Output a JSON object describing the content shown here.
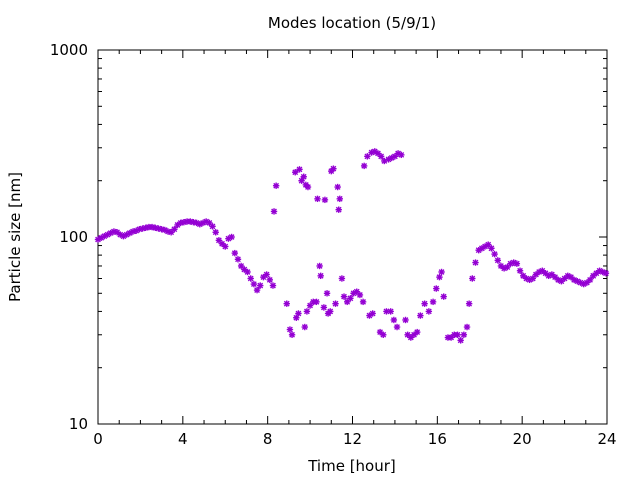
{
  "chart_data": {
    "type": "scatter",
    "title": "Modes location (5/9/1)",
    "xlabel": "Time [hour]",
    "ylabel": "Particle size [nm]",
    "xlim": [
      0,
      24
    ],
    "ylim": [
      10,
      1000
    ],
    "yscale": "log",
    "xticks": [
      0,
      4,
      8,
      12,
      16,
      20,
      24
    ],
    "xtick_labels": [
      "0",
      "4",
      "8",
      "12",
      "16",
      "20",
      "24"
    ],
    "yticks": [
      10,
      100,
      1000
    ],
    "ytick_labels": [
      "10",
      "100",
      "1000"
    ],
    "grid": false,
    "legend": "none",
    "marker": "asterisk",
    "color": "#9400d3",
    "series": [
      {
        "points": [
          [
            0.0,
            97
          ],
          [
            0.15,
            99
          ],
          [
            0.3,
            101
          ],
          [
            0.45,
            103
          ],
          [
            0.6,
            105
          ],
          [
            0.75,
            107
          ],
          [
            0.9,
            106
          ],
          [
            1.05,
            103
          ],
          [
            1.2,
            101
          ],
          [
            1.35,
            103
          ],
          [
            1.5,
            105
          ],
          [
            1.65,
            107
          ],
          [
            1.8,
            108
          ],
          [
            1.95,
            110
          ],
          [
            2.1,
            111
          ],
          [
            2.25,
            112
          ],
          [
            2.4,
            113
          ],
          [
            2.55,
            113
          ],
          [
            2.7,
            112
          ],
          [
            2.85,
            111
          ],
          [
            3.0,
            110
          ],
          [
            3.15,
            109
          ],
          [
            3.3,
            107
          ],
          [
            3.45,
            106
          ],
          [
            3.6,
            110
          ],
          [
            3.75,
            116
          ],
          [
            3.9,
            119
          ],
          [
            4.05,
            120
          ],
          [
            4.2,
            121
          ],
          [
            4.35,
            121
          ],
          [
            4.5,
            120
          ],
          [
            4.65,
            119
          ],
          [
            4.8,
            117
          ],
          [
            4.95,
            119
          ],
          [
            5.1,
            121
          ],
          [
            5.25,
            119
          ],
          [
            5.4,
            114
          ],
          [
            5.55,
            106
          ],
          [
            5.7,
            96
          ],
          [
            5.85,
            92
          ],
          [
            6.0,
            89
          ],
          [
            6.15,
            98
          ],
          [
            6.3,
            100
          ],
          [
            6.45,
            82
          ],
          [
            6.6,
            76
          ],
          [
            6.75,
            70
          ],
          [
            6.9,
            67
          ],
          [
            7.05,
            65
          ],
          [
            7.2,
            60
          ],
          [
            7.35,
            56
          ],
          [
            7.5,
            52
          ],
          [
            7.65,
            55
          ],
          [
            7.8,
            61
          ],
          [
            7.95,
            63
          ],
          [
            8.1,
            59
          ],
          [
            8.25,
            55
          ],
          [
            8.3,
            137
          ],
          [
            8.4,
            188
          ],
          [
            8.9,
            44
          ],
          [
            9.05,
            32
          ],
          [
            9.15,
            30
          ],
          [
            9.3,
            222
          ],
          [
            9.35,
            37
          ],
          [
            9.45,
            39
          ],
          [
            9.5,
            230
          ],
          [
            9.6,
            200
          ],
          [
            9.7,
            210
          ],
          [
            9.75,
            33
          ],
          [
            9.8,
            190
          ],
          [
            9.9,
            185
          ],
          [
            9.85,
            40
          ],
          [
            10.0,
            43
          ],
          [
            10.15,
            45
          ],
          [
            10.3,
            45
          ],
          [
            10.35,
            160
          ],
          [
            10.45,
            70
          ],
          [
            10.5,
            62
          ],
          [
            10.65,
            42
          ],
          [
            10.7,
            158
          ],
          [
            10.8,
            50
          ],
          [
            10.85,
            39
          ],
          [
            10.95,
            40
          ],
          [
            11.0,
            225
          ],
          [
            11.1,
            232
          ],
          [
            11.2,
            44
          ],
          [
            11.3,
            185
          ],
          [
            11.35,
            140
          ],
          [
            11.4,
            160
          ],
          [
            11.5,
            60
          ],
          [
            11.6,
            48
          ],
          [
            11.75,
            45
          ],
          [
            11.9,
            47
          ],
          [
            12.05,
            50
          ],
          [
            12.2,
            51
          ],
          [
            12.35,
            49
          ],
          [
            12.5,
            45
          ],
          [
            12.55,
            240
          ],
          [
            12.7,
            270
          ],
          [
            12.8,
            38
          ],
          [
            12.9,
            283
          ],
          [
            12.95,
            39
          ],
          [
            13.05,
            287
          ],
          [
            13.2,
            280
          ],
          [
            13.3,
            31
          ],
          [
            13.35,
            270
          ],
          [
            13.45,
            30
          ],
          [
            13.5,
            255
          ],
          [
            13.6,
            40
          ],
          [
            13.7,
            260
          ],
          [
            13.8,
            40
          ],
          [
            13.85,
            265
          ],
          [
            13.95,
            36
          ],
          [
            14.0,
            270
          ],
          [
            14.1,
            33
          ],
          [
            14.15,
            280
          ],
          [
            14.3,
            275
          ],
          [
            14.5,
            36
          ],
          [
            14.6,
            30
          ],
          [
            14.75,
            29
          ],
          [
            14.9,
            30
          ],
          [
            15.05,
            31
          ],
          [
            15.2,
            38
          ],
          [
            15.4,
            44
          ],
          [
            15.6,
            40
          ],
          [
            15.8,
            45
          ],
          [
            15.95,
            53
          ],
          [
            16.1,
            61
          ],
          [
            16.2,
            65
          ],
          [
            16.3,
            48
          ],
          [
            16.5,
            29
          ],
          [
            16.65,
            29
          ],
          [
            16.8,
            30
          ],
          [
            16.95,
            30
          ],
          [
            17.1,
            28
          ],
          [
            17.25,
            30
          ],
          [
            17.4,
            33
          ],
          [
            17.5,
            44
          ],
          [
            17.65,
            60
          ],
          [
            17.8,
            73
          ],
          [
            17.95,
            85
          ],
          [
            18.1,
            87
          ],
          [
            18.25,
            89
          ],
          [
            18.4,
            91
          ],
          [
            18.55,
            87
          ],
          [
            18.7,
            81
          ],
          [
            18.85,
            75
          ],
          [
            19.0,
            70
          ],
          [
            19.15,
            68
          ],
          [
            19.3,
            69
          ],
          [
            19.45,
            72
          ],
          [
            19.6,
            73
          ],
          [
            19.75,
            72
          ],
          [
            19.9,
            66
          ],
          [
            20.05,
            62
          ],
          [
            20.2,
            60
          ],
          [
            20.35,
            59
          ],
          [
            20.5,
            60
          ],
          [
            20.65,
            63
          ],
          [
            20.8,
            65
          ],
          [
            20.95,
            66
          ],
          [
            21.1,
            64
          ],
          [
            21.25,
            62
          ],
          [
            21.4,
            63
          ],
          [
            21.55,
            61
          ],
          [
            21.7,
            59
          ],
          [
            21.85,
            58
          ],
          [
            22.0,
            60
          ],
          [
            22.15,
            62
          ],
          [
            22.3,
            61
          ],
          [
            22.45,
            59
          ],
          [
            22.6,
            58
          ],
          [
            22.75,
            57
          ],
          [
            22.9,
            56
          ],
          [
            23.05,
            57
          ],
          [
            23.2,
            59
          ],
          [
            23.35,
            62
          ],
          [
            23.5,
            64
          ],
          [
            23.65,
            66
          ],
          [
            23.8,
            65
          ],
          [
            23.95,
            64
          ]
        ]
      }
    ]
  }
}
